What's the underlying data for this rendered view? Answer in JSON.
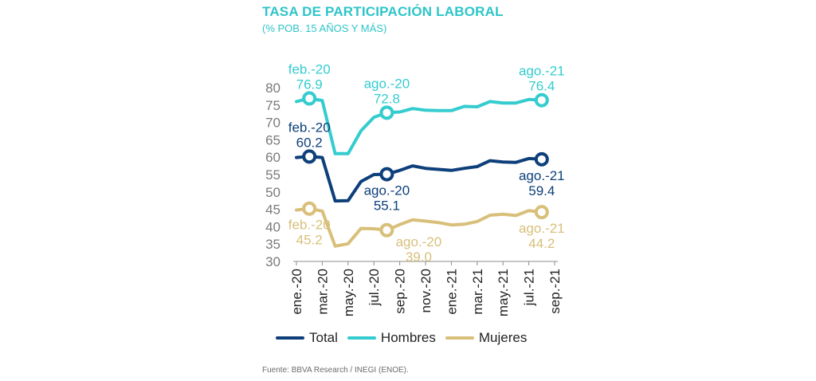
{
  "title": "TASA DE PARTICIPACIÓN LABORAL",
  "subtitle": "(% POB. 15 AÑOS Y MÁS)",
  "source": "Fuente: BBVA Research / INEGI (ENOE).",
  "colors": {
    "Total": "#0d3f7a",
    "Hombres": "#34cccf",
    "Mujeres": "#d8bf7a",
    "axis": "#7f7f7f"
  },
  "chart_data": {
    "type": "line",
    "title": "TASA DE PARTICIPACIÓN LABORAL",
    "subtitle": "(% POB. 15 AÑOS Y MÁS)",
    "x": [
      "ene.-20",
      "feb.-20",
      "mar.-20",
      "abr.-20",
      "may.-20",
      "jun.-20",
      "jul.-20",
      "ago.-20",
      "sep.-20",
      "oct.-20",
      "nov.-20",
      "dic.-20",
      "ene.-21",
      "feb.-21",
      "mar.-21",
      "abr.-21",
      "may.-21",
      "jun.-21",
      "jul.-21",
      "ago.-21",
      "sep.-21"
    ],
    "tick_labels": [
      "ene.-20",
      "mar.-20",
      "may.-20",
      "jul.-20",
      "sep.-20",
      "nov.-20",
      "ene.-21",
      "mar.-21",
      "may.-21",
      "jul.-21",
      "sep.-21"
    ],
    "ylim": [
      30,
      80
    ],
    "yticks": [
      30,
      35,
      40,
      45,
      50,
      55,
      60,
      65,
      70,
      75,
      80
    ],
    "grid": false,
    "legend_position": "bottom",
    "series": [
      {
        "name": "Total",
        "values": [
          59.9,
          60.2,
          59.9,
          47.4,
          47.5,
          53.0,
          55.0,
          55.1,
          56.2,
          57.5,
          56.8,
          56.5,
          56.2,
          56.8,
          57.3,
          59.0,
          58.6,
          58.5,
          59.6,
          59.4,
          null
        ]
      },
      {
        "name": "Hombres",
        "values": [
          76.0,
          76.9,
          76.3,
          61.0,
          61.0,
          67.6,
          71.5,
          72.8,
          73.0,
          74.0,
          73.5,
          73.4,
          73.4,
          74.6,
          74.5,
          76.0,
          75.6,
          75.6,
          76.6,
          76.4,
          null
        ]
      },
      {
        "name": "Mujeres",
        "values": [
          44.8,
          45.2,
          44.5,
          34.4,
          35.1,
          39.5,
          39.4,
          39.0,
          40.6,
          42.0,
          41.6,
          41.2,
          40.5,
          40.7,
          41.5,
          43.3,
          43.6,
          43.2,
          44.6,
          44.2,
          null
        ]
      }
    ],
    "annotations": [
      {
        "series": "Hombres",
        "x": "feb.-20",
        "date": "feb.-20",
        "value": "76.9",
        "pos": "above"
      },
      {
        "series": "Hombres",
        "x": "ago.-20",
        "date": "ago.-20",
        "value": "72.8",
        "pos": "above"
      },
      {
        "series": "Hombres",
        "x": "ago.-21",
        "date": "ago.-21",
        "value": "76.4",
        "pos": "above"
      },
      {
        "series": "Total",
        "x": "feb.-20",
        "date": "feb.-20",
        "value": "60.2",
        "pos": "above"
      },
      {
        "series": "Total",
        "x": "ago.-20",
        "date": "ago.-20",
        "value": "55.1",
        "pos": "below"
      },
      {
        "series": "Total",
        "x": "ago.-21",
        "date": "ago.-21",
        "value": "59.4",
        "pos": "below"
      },
      {
        "series": "Mujeres",
        "x": "feb.-20",
        "date": "feb.-20",
        "value": "45.2",
        "pos": "below"
      },
      {
        "series": "Mujeres",
        "x": "ago.-20",
        "date": "ago.-20",
        "value": "39.0",
        "pos": "below-right"
      },
      {
        "series": "Mujeres",
        "x": "ago.-21",
        "date": "ago.-21",
        "value": "44.2",
        "pos": "below"
      }
    ]
  }
}
